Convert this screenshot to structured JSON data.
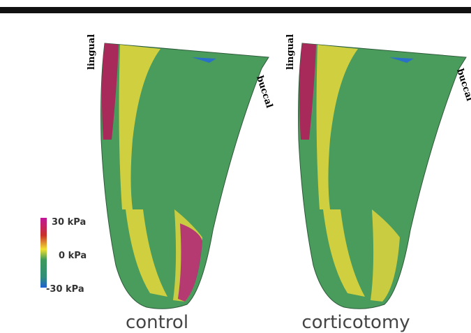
{
  "panels": [
    {
      "label": "control",
      "left_label": "lingual",
      "right_label": "buccal"
    },
    {
      "label": "corticotomy",
      "left_label": "lingual",
      "right_label": "buccal"
    }
  ],
  "colorbar": {
    "ticks": [
      "30 kPa",
      "0 kPa",
      "-30 kPa"
    ]
  }
}
